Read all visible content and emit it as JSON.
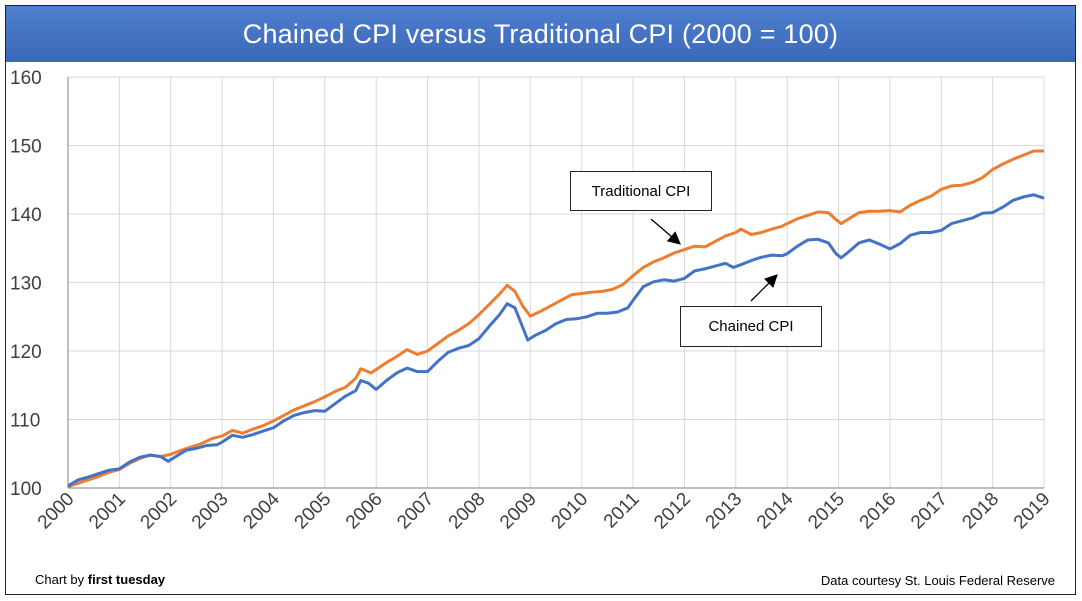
{
  "title": "Chained CPI versus Traditional CPI (2000 = 100)",
  "footer": {
    "left_prefix": "Chart by ",
    "left_brand": "first tuesday",
    "right": "Data courtesy St. Louis Federal Reserve"
  },
  "colors": {
    "title_bar": "#4472c4",
    "traditional": "#ed7d31",
    "chained": "#4472c4",
    "grid": "#d9d9d9"
  },
  "chart_data": {
    "type": "line",
    "xlim": [
      2000,
      2019
    ],
    "ylim": [
      100,
      160
    ],
    "y_ticks": [
      "100",
      "110",
      "120",
      "130",
      "140",
      "150",
      "160"
    ],
    "x_ticks": [
      "2000",
      "2001",
      "2002",
      "2003",
      "2004",
      "2005",
      "2006",
      "2007",
      "2008",
      "2009",
      "2010",
      "2011",
      "2012",
      "2013",
      "2014",
      "2015",
      "2016",
      "2017",
      "2018",
      "2019"
    ],
    "grid": true,
    "annotations": [
      {
        "text": "Traditional CPI",
        "series": "Traditional CPI"
      },
      {
        "text": "Chained CPI",
        "series": "Chained CPI"
      }
    ],
    "series": [
      {
        "name": "Traditional CPI",
        "color": "#ed7d31",
        "points": [
          [
            2000.0,
            100.2
          ],
          [
            2000.2,
            100.7
          ],
          [
            2000.4,
            101.2
          ],
          [
            2000.6,
            101.7
          ],
          [
            2000.8,
            102.3
          ],
          [
            2001.0,
            102.7
          ],
          [
            2001.2,
            103.6
          ],
          [
            2001.4,
            104.3
          ],
          [
            2001.6,
            104.8
          ],
          [
            2001.8,
            104.6
          ],
          [
            2002.0,
            104.9
          ],
          [
            2002.2,
            105.5
          ],
          [
            2002.4,
            106.0
          ],
          [
            2002.6,
            106.5
          ],
          [
            2002.8,
            107.2
          ],
          [
            2003.0,
            107.6
          ],
          [
            2003.2,
            108.4
          ],
          [
            2003.4,
            108.0
          ],
          [
            2003.6,
            108.6
          ],
          [
            2003.8,
            109.1
          ],
          [
            2004.0,
            109.8
          ],
          [
            2004.2,
            110.6
          ],
          [
            2004.4,
            111.4
          ],
          [
            2004.6,
            112.0
          ],
          [
            2004.8,
            112.6
          ],
          [
            2005.0,
            113.3
          ],
          [
            2005.2,
            114.1
          ],
          [
            2005.4,
            114.7
          ],
          [
            2005.6,
            116.0
          ],
          [
            2005.7,
            117.4
          ],
          [
            2005.9,
            116.8
          ],
          [
            2006.0,
            117.3
          ],
          [
            2006.2,
            118.3
          ],
          [
            2006.4,
            119.2
          ],
          [
            2006.6,
            120.2
          ],
          [
            2006.8,
            119.5
          ],
          [
            2007.0,
            120.0
          ],
          [
            2007.2,
            121.1
          ],
          [
            2007.4,
            122.2
          ],
          [
            2007.6,
            123.0
          ],
          [
            2007.8,
            124.0
          ],
          [
            2008.0,
            125.3
          ],
          [
            2008.2,
            126.8
          ],
          [
            2008.4,
            128.3
          ],
          [
            2008.55,
            129.6
          ],
          [
            2008.7,
            128.7
          ],
          [
            2008.85,
            126.6
          ],
          [
            2009.0,
            125.1
          ],
          [
            2009.2,
            125.8
          ],
          [
            2009.4,
            126.6
          ],
          [
            2009.6,
            127.4
          ],
          [
            2009.8,
            128.2
          ],
          [
            2010.0,
            128.4
          ],
          [
            2010.2,
            128.6
          ],
          [
            2010.4,
            128.7
          ],
          [
            2010.6,
            129.0
          ],
          [
            2010.8,
            129.7
          ],
          [
            2011.0,
            131.0
          ],
          [
            2011.2,
            132.2
          ],
          [
            2011.4,
            133.0
          ],
          [
            2011.6,
            133.6
          ],
          [
            2011.8,
            134.3
          ],
          [
            2012.0,
            134.8
          ],
          [
            2012.2,
            135.3
          ],
          [
            2012.4,
            135.2
          ],
          [
            2012.6,
            136.0
          ],
          [
            2012.8,
            136.8
          ],
          [
            2013.0,
            137.3
          ],
          [
            2013.1,
            137.8
          ],
          [
            2013.3,
            137.0
          ],
          [
            2013.5,
            137.3
          ],
          [
            2013.7,
            137.8
          ],
          [
            2013.9,
            138.2
          ],
          [
            2014.0,
            138.6
          ],
          [
            2014.2,
            139.3
          ],
          [
            2014.4,
            139.8
          ],
          [
            2014.6,
            140.3
          ],
          [
            2014.8,
            140.2
          ],
          [
            2014.95,
            139.2
          ],
          [
            2015.05,
            138.6
          ],
          [
            2015.2,
            139.3
          ],
          [
            2015.4,
            140.2
          ],
          [
            2015.6,
            140.4
          ],
          [
            2015.8,
            140.4
          ],
          [
            2016.0,
            140.5
          ],
          [
            2016.2,
            140.3
          ],
          [
            2016.4,
            141.3
          ],
          [
            2016.6,
            142.0
          ],
          [
            2016.8,
            142.6
          ],
          [
            2017.0,
            143.6
          ],
          [
            2017.2,
            144.1
          ],
          [
            2017.4,
            144.2
          ],
          [
            2017.6,
            144.6
          ],
          [
            2017.8,
            145.3
          ],
          [
            2018.0,
            146.5
          ],
          [
            2018.2,
            147.3
          ],
          [
            2018.4,
            148.0
          ],
          [
            2018.6,
            148.6
          ],
          [
            2018.8,
            149.2
          ],
          [
            2019.0,
            149.2
          ]
        ]
      },
      {
        "name": "Chained CPI",
        "color": "#4472c4",
        "points": [
          [
            2000.0,
            100.3
          ],
          [
            2000.2,
            101.2
          ],
          [
            2000.4,
            101.6
          ],
          [
            2000.6,
            102.1
          ],
          [
            2000.8,
            102.6
          ],
          [
            2001.0,
            102.8
          ],
          [
            2001.2,
            103.8
          ],
          [
            2001.4,
            104.5
          ],
          [
            2001.6,
            104.8
          ],
          [
            2001.8,
            104.6
          ],
          [
            2001.95,
            103.9
          ],
          [
            2002.1,
            104.6
          ],
          [
            2002.3,
            105.5
          ],
          [
            2002.5,
            105.8
          ],
          [
            2002.7,
            106.2
          ],
          [
            2002.9,
            106.3
          ],
          [
            2003.0,
            106.7
          ],
          [
            2003.2,
            107.7
          ],
          [
            2003.4,
            107.4
          ],
          [
            2003.6,
            107.8
          ],
          [
            2003.8,
            108.3
          ],
          [
            2004.0,
            108.8
          ],
          [
            2004.2,
            109.8
          ],
          [
            2004.4,
            110.6
          ],
          [
            2004.6,
            111.0
          ],
          [
            2004.8,
            111.3
          ],
          [
            2005.0,
            111.2
          ],
          [
            2005.2,
            112.3
          ],
          [
            2005.4,
            113.4
          ],
          [
            2005.6,
            114.2
          ],
          [
            2005.7,
            115.7
          ],
          [
            2005.85,
            115.3
          ],
          [
            2006.0,
            114.4
          ],
          [
            2006.2,
            115.7
          ],
          [
            2006.4,
            116.8
          ],
          [
            2006.6,
            117.5
          ],
          [
            2006.8,
            117.0
          ],
          [
            2007.0,
            117.0
          ],
          [
            2007.2,
            118.5
          ],
          [
            2007.4,
            119.8
          ],
          [
            2007.6,
            120.4
          ],
          [
            2007.8,
            120.8
          ],
          [
            2008.0,
            121.8
          ],
          [
            2008.2,
            123.6
          ],
          [
            2008.4,
            125.3
          ],
          [
            2008.55,
            126.9
          ],
          [
            2008.7,
            126.3
          ],
          [
            2008.85,
            123.5
          ],
          [
            2008.95,
            121.6
          ],
          [
            2009.1,
            122.3
          ],
          [
            2009.3,
            123.0
          ],
          [
            2009.5,
            124.0
          ],
          [
            2009.7,
            124.6
          ],
          [
            2009.9,
            124.7
          ],
          [
            2010.1,
            125.0
          ],
          [
            2010.3,
            125.5
          ],
          [
            2010.5,
            125.5
          ],
          [
            2010.7,
            125.7
          ],
          [
            2010.9,
            126.3
          ],
          [
            2011.0,
            127.4
          ],
          [
            2011.2,
            129.4
          ],
          [
            2011.4,
            130.1
          ],
          [
            2011.6,
            130.4
          ],
          [
            2011.8,
            130.2
          ],
          [
            2012.0,
            130.6
          ],
          [
            2012.2,
            131.7
          ],
          [
            2012.4,
            132.0
          ],
          [
            2012.6,
            132.4
          ],
          [
            2012.8,
            132.8
          ],
          [
            2012.95,
            132.2
          ],
          [
            2013.1,
            132.6
          ],
          [
            2013.3,
            133.2
          ],
          [
            2013.5,
            133.7
          ],
          [
            2013.7,
            134.0
          ],
          [
            2013.9,
            133.9
          ],
          [
            2014.0,
            134.2
          ],
          [
            2014.2,
            135.3
          ],
          [
            2014.4,
            136.2
          ],
          [
            2014.6,
            136.3
          ],
          [
            2014.8,
            135.8
          ],
          [
            2014.95,
            134.2
          ],
          [
            2015.05,
            133.6
          ],
          [
            2015.2,
            134.5
          ],
          [
            2015.4,
            135.8
          ],
          [
            2015.6,
            136.2
          ],
          [
            2015.8,
            135.6
          ],
          [
            2016.0,
            134.9
          ],
          [
            2016.2,
            135.7
          ],
          [
            2016.4,
            136.9
          ],
          [
            2016.6,
            137.3
          ],
          [
            2016.8,
            137.3
          ],
          [
            2017.0,
            137.6
          ],
          [
            2017.2,
            138.6
          ],
          [
            2017.4,
            139.0
          ],
          [
            2017.6,
            139.4
          ],
          [
            2017.8,
            140.1
          ],
          [
            2018.0,
            140.2
          ],
          [
            2018.2,
            141.0
          ],
          [
            2018.4,
            142.0
          ],
          [
            2018.6,
            142.5
          ],
          [
            2018.8,
            142.8
          ],
          [
            2019.0,
            142.3
          ]
        ]
      }
    ]
  }
}
